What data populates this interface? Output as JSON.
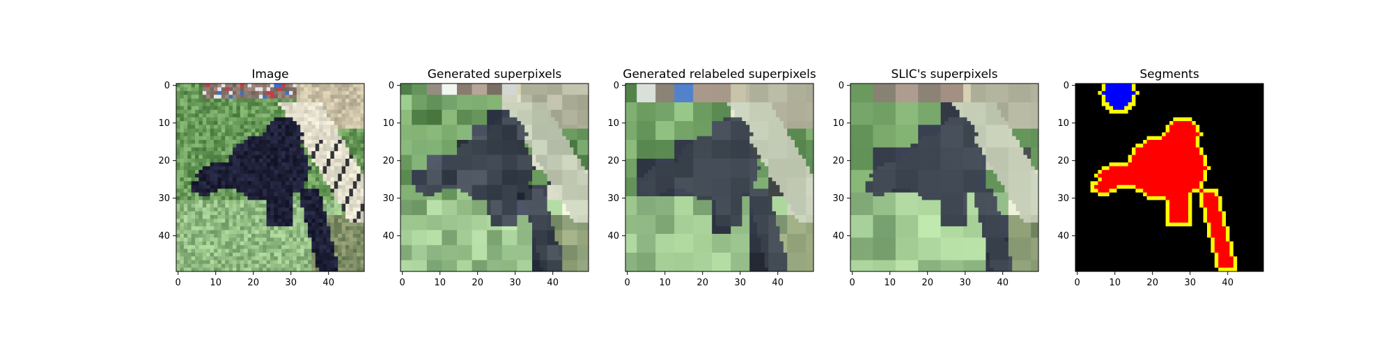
{
  "figure": {
    "background": "#ffffff"
  },
  "chart_data": [
    {
      "type": "heatmap",
      "title": "Image",
      "content": "photo",
      "xticks": [
        "0",
        "10",
        "20",
        "30",
        "40"
      ],
      "yticks": [
        "0",
        "10",
        "20",
        "30",
        "40"
      ],
      "xlim": [
        -0.5,
        49.5
      ],
      "ylim": [
        49.5,
        -0.5
      ],
      "grid": false
    },
    {
      "type": "heatmap",
      "title": "Generated superpixels",
      "content": "superpixel-mean-colors",
      "xticks": [
        "0",
        "10",
        "20",
        "30",
        "40"
      ],
      "yticks": [
        "0",
        "10",
        "20",
        "30",
        "40"
      ],
      "xlim": [
        -0.5,
        49.5
      ],
      "ylim": [
        49.5,
        -0.5
      ],
      "grid": false
    },
    {
      "type": "heatmap",
      "title": "Generated relabeled superpixels",
      "content": "superpixel-mean-colors",
      "xticks": [
        "0",
        "10",
        "20",
        "30",
        "40"
      ],
      "yticks": [
        "0",
        "10",
        "20",
        "30",
        "40"
      ],
      "xlim": [
        -0.5,
        49.5
      ],
      "ylim": [
        49.5,
        -0.5
      ],
      "grid": false
    },
    {
      "type": "heatmap",
      "title": "SLIC's superpixels",
      "content": "superpixel-mean-colors",
      "xticks": [
        "0",
        "10",
        "20",
        "30",
        "40"
      ],
      "yticks": [
        "0",
        "10",
        "20",
        "30",
        "40"
      ],
      "xlim": [
        -0.5,
        49.5
      ],
      "ylim": [
        49.5,
        -0.5
      ],
      "grid": false
    },
    {
      "type": "heatmap",
      "title": "Segments",
      "content": "segment-mask",
      "xticks": [
        "0",
        "10",
        "20",
        "30",
        "40"
      ],
      "yticks": [
        "0",
        "10",
        "20",
        "30",
        "40"
      ],
      "xlim": [
        -0.5,
        49.5
      ],
      "ylim": [
        49.5,
        -0.5
      ],
      "grid": false,
      "colors": {
        "background": "#000000",
        "segment_1": "#0000ff",
        "segment_2": "#ff0000",
        "boundary": "#ffff00"
      }
    }
  ]
}
